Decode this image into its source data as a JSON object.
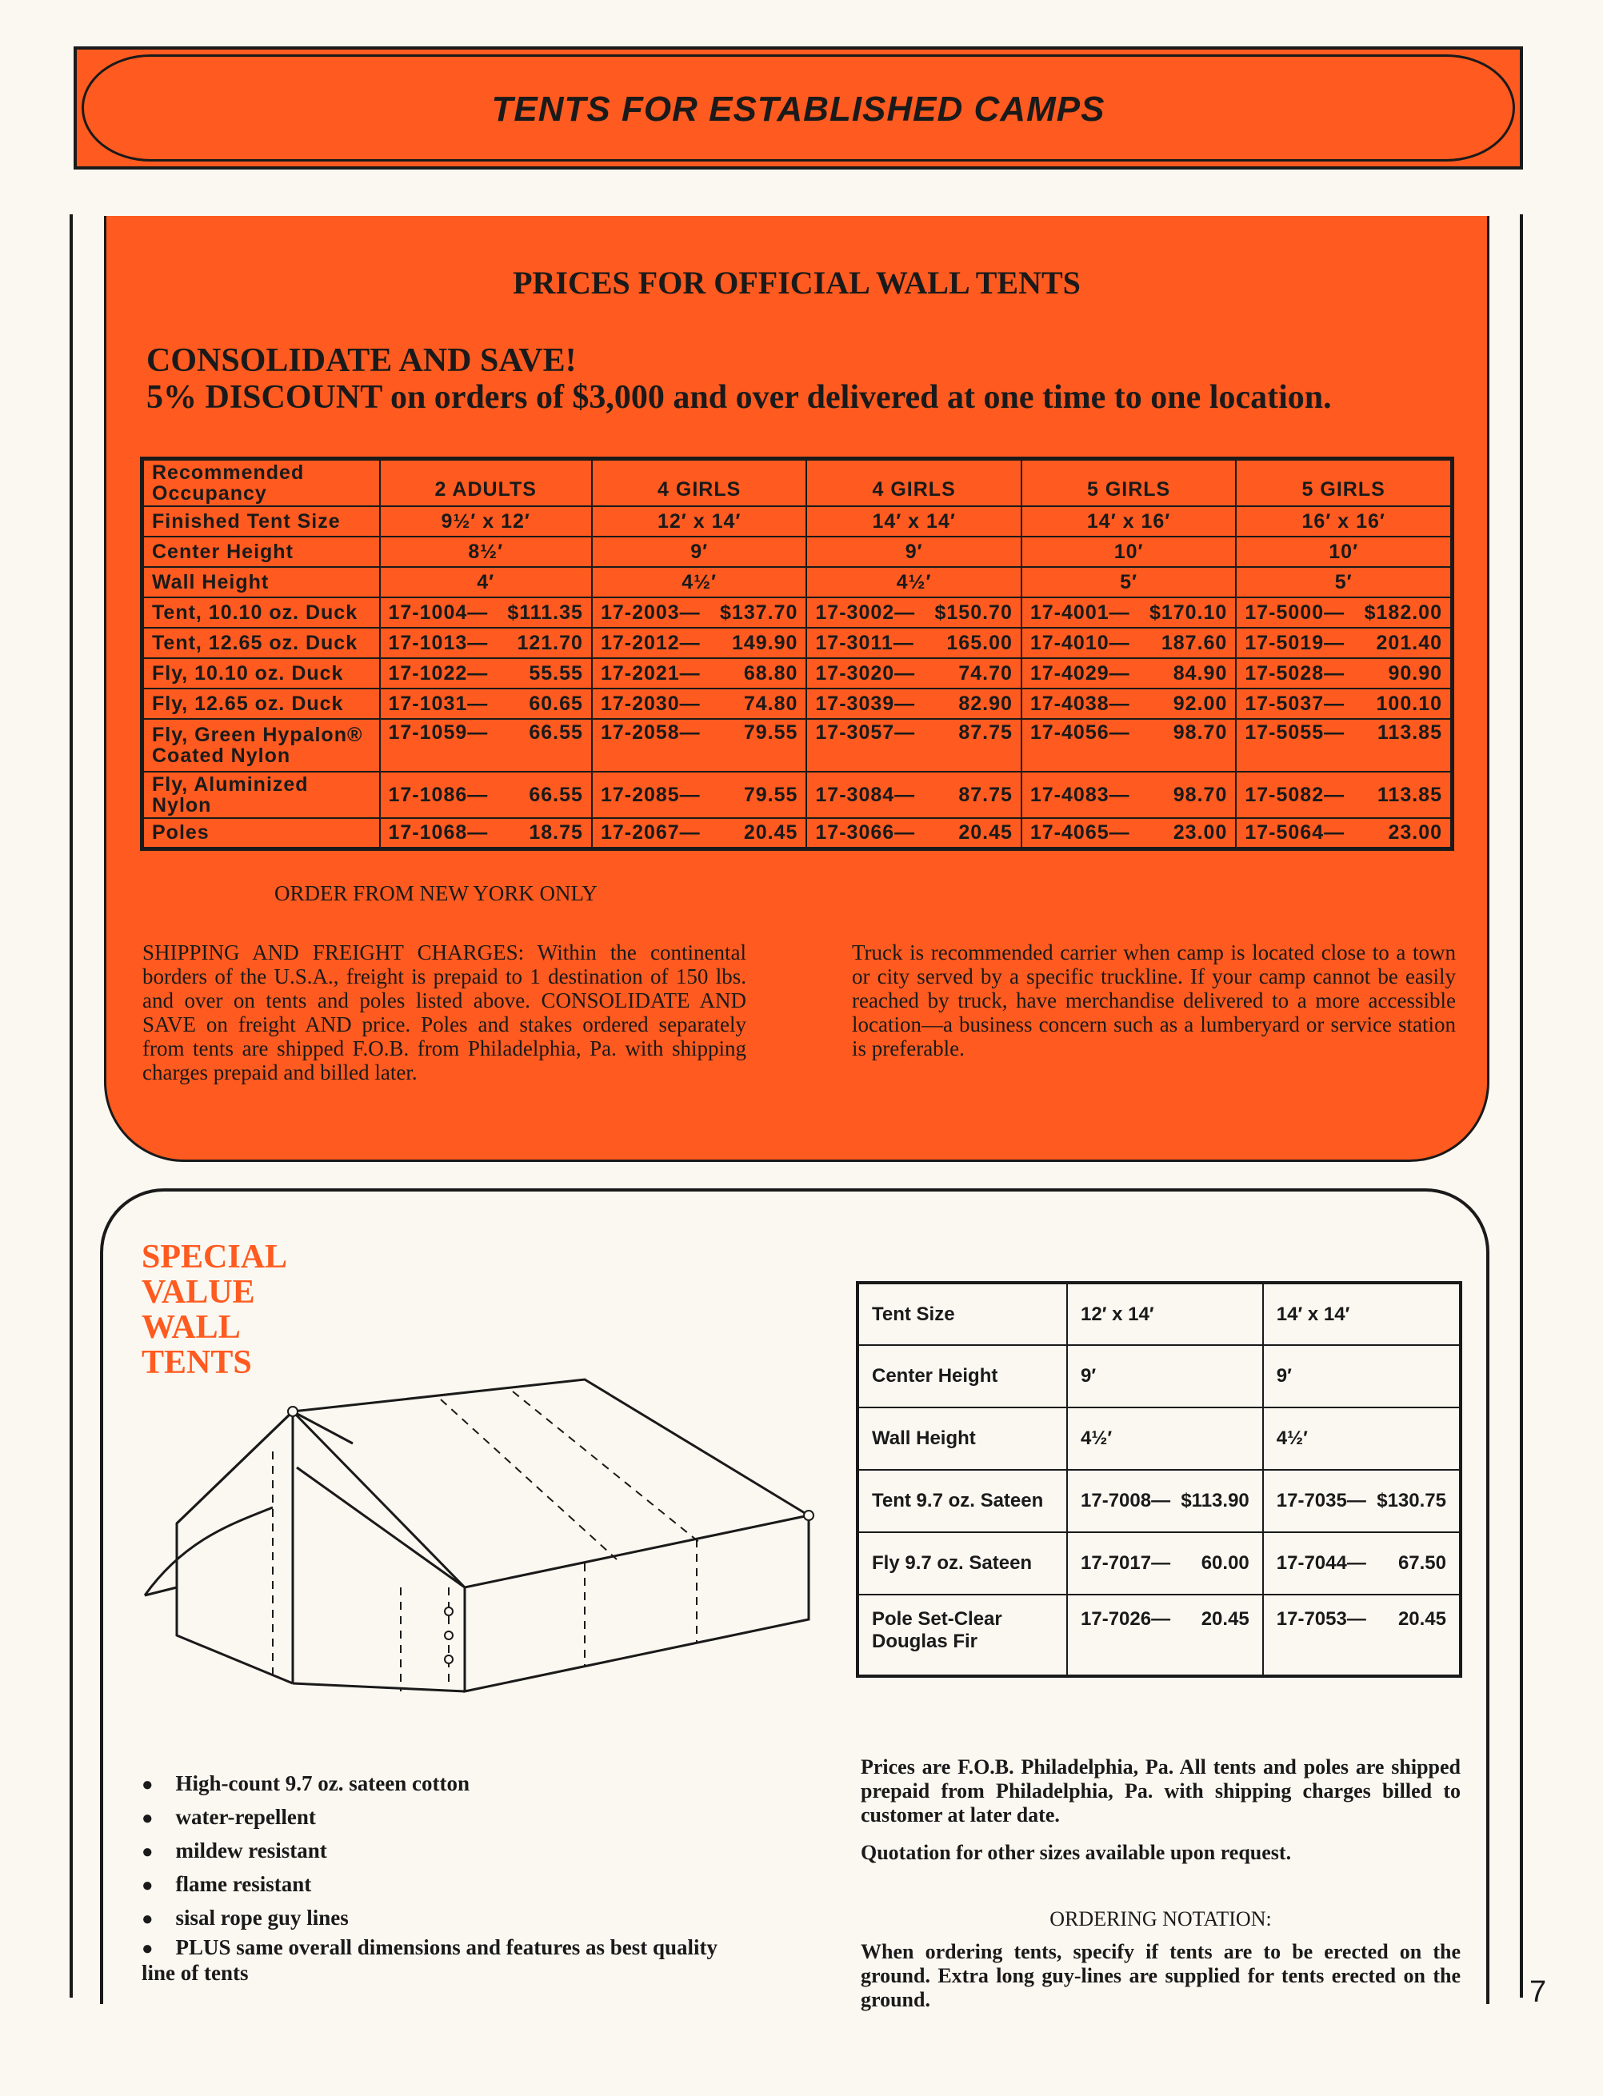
{
  "banner": {
    "title": "TENTS FOR ESTABLISHED CAMPS"
  },
  "prices": {
    "title": "PRICES FOR OFFICIAL WALL TENTS",
    "consolidate": "CONSOLIDATE AND SAVE!",
    "discount": "5% DISCOUNT on orders of $3,000 and over delivered at one time to one location.",
    "headers": [
      "Recommended Occupancy",
      "2 ADULTS",
      "4 GIRLS",
      "4 GIRLS",
      "5 GIRLS",
      "5 GIRLS"
    ],
    "spec_rows": [
      {
        "label": "Finished Tent Size",
        "values": [
          "9½′ x 12′",
          "12′ x 14′",
          "14′ x 14′",
          "14′ x 16′",
          "16′ x 16′"
        ]
      },
      {
        "label": "Center Height",
        "values": [
          "8½′",
          "9′",
          "9′",
          "10′",
          "10′"
        ]
      },
      {
        "label": "Wall Height",
        "values": [
          "4′",
          "4½′",
          "4½′",
          "5′",
          "5′"
        ]
      }
    ],
    "price_rows": [
      {
        "label": "Tent, 10.10 oz. Duck",
        "values": [
          [
            "17-1004—",
            "$111.35"
          ],
          [
            "17-2003—",
            "$137.70"
          ],
          [
            "17-3002—",
            "$150.70"
          ],
          [
            "17-4001—",
            "$170.10"
          ],
          [
            "17-5000—",
            "$182.00"
          ]
        ]
      },
      {
        "label": "Tent, 12.65 oz. Duck",
        "values": [
          [
            "17-1013—",
            "121.70"
          ],
          [
            "17-2012—",
            "149.90"
          ],
          [
            "17-3011—",
            "165.00"
          ],
          [
            "17-4010—",
            "187.60"
          ],
          [
            "17-5019—",
            "201.40"
          ]
        ]
      },
      {
        "label": "Fly, 10.10 oz. Duck",
        "values": [
          [
            "17-1022—",
            "55.55"
          ],
          [
            "17-2021—",
            "68.80"
          ],
          [
            "17-3020—",
            "74.70"
          ],
          [
            "17-4029—",
            "84.90"
          ],
          [
            "17-5028—",
            "90.90"
          ]
        ]
      },
      {
        "label": "Fly, 12.65 oz. Duck",
        "values": [
          [
            "17-1031—",
            "60.65"
          ],
          [
            "17-2030—",
            "74.80"
          ],
          [
            "17-3039—",
            "82.90"
          ],
          [
            "17-4038—",
            "92.00"
          ],
          [
            "17-5037—",
            "100.10"
          ]
        ]
      },
      {
        "label": "Fly, Green Hypalon® Coated Nylon",
        "values": [
          [
            "17-1059—",
            "66.55"
          ],
          [
            "17-2058—",
            "79.55"
          ],
          [
            "17-3057—",
            "87.75"
          ],
          [
            "17-4056—",
            "98.70"
          ],
          [
            "17-5055—",
            "113.85"
          ]
        ]
      },
      {
        "label": "Fly, Aluminized Nylon",
        "values": [
          [
            "17-1086—",
            "66.55"
          ],
          [
            "17-2085—",
            "79.55"
          ],
          [
            "17-3084—",
            "87.75"
          ],
          [
            "17-4083—",
            "98.70"
          ],
          [
            "17-5082—",
            "113.85"
          ]
        ]
      },
      {
        "label": "Poles",
        "values": [
          [
            "17-1068—",
            "18.75"
          ],
          [
            "17-2067—",
            "20.45"
          ],
          [
            "17-3066—",
            "20.45"
          ],
          [
            "17-4065—",
            "23.00"
          ],
          [
            "17-5064—",
            "23.00"
          ]
        ]
      }
    ],
    "order_from": "ORDER FROM NEW YORK ONLY",
    "shipping": "SHIPPING AND FREIGHT CHARGES: Within the continental borders of the U.S.A., freight is prepaid to 1 destination of 150 lbs. and over on tents and poles listed above. CONSOLIDATE AND SAVE on freight AND price. Poles and stakes ordered separately from tents are shipped F.O.B. from Philadelphia, Pa. with shipping charges prepaid and billed later.",
    "truck": "Truck is recommended carrier when camp is located close to a town or city served by a specific truckline. If your camp cannot be easily reached by truck, have merchandise delivered to a more accessible location—a business concern such as a lumberyard or service station is preferable."
  },
  "special": {
    "title_lines": [
      "SPECIAL",
      "VALUE",
      "WALL",
      "TENTS"
    ],
    "rows": [
      {
        "label": "Tent Size",
        "values": [
          "12′ x 14′",
          "14′ x 14′"
        ]
      },
      {
        "label": "Center Height",
        "values": [
          "9′",
          "9′"
        ]
      },
      {
        "label": "Wall Height",
        "values": [
          "4½′",
          "4½′"
        ]
      },
      {
        "label": "Tent 9.7 oz. Sateen",
        "values": [
          [
            "17-7008—",
            "$113.90"
          ],
          [
            "17-7035—",
            "$130.75"
          ]
        ]
      },
      {
        "label": "Fly 9.7 oz. Sateen",
        "values": [
          [
            "17-7017—",
            "60.00"
          ],
          [
            "17-7044—",
            "67.50"
          ]
        ]
      },
      {
        "label": "Pole Set-Clear Douglas Fir",
        "values": [
          [
            "17-7026—",
            "20.45"
          ],
          [
            "17-7053—",
            "20.45"
          ]
        ]
      }
    ],
    "bullets": [
      "High-count 9.7 oz. sateen cotton",
      "water-repellent",
      "mildew resistant",
      "flame resistant",
      "sisal rope guy lines",
      "PLUS same overall dimensions and features as best quality line of tents"
    ],
    "fob": "Prices are F.O.B. Philadelphia, Pa. All tents and poles are shipped prepaid from Philadelphia, Pa. with shipping charges billed to customer at later date.",
    "quotation": "Quotation for other sizes available upon request.",
    "ordering_title": "ORDERING NOTATION:",
    "ordering_text": "When ordering tents, specify if tents are to be erected on the ground. Extra long guy-lines are supplied for tents erected on the ground."
  },
  "page_number": "7",
  "colors": {
    "accent": "#ff5a1f",
    "paper": "#fbf8f1",
    "ink": "#1a1a1a"
  }
}
